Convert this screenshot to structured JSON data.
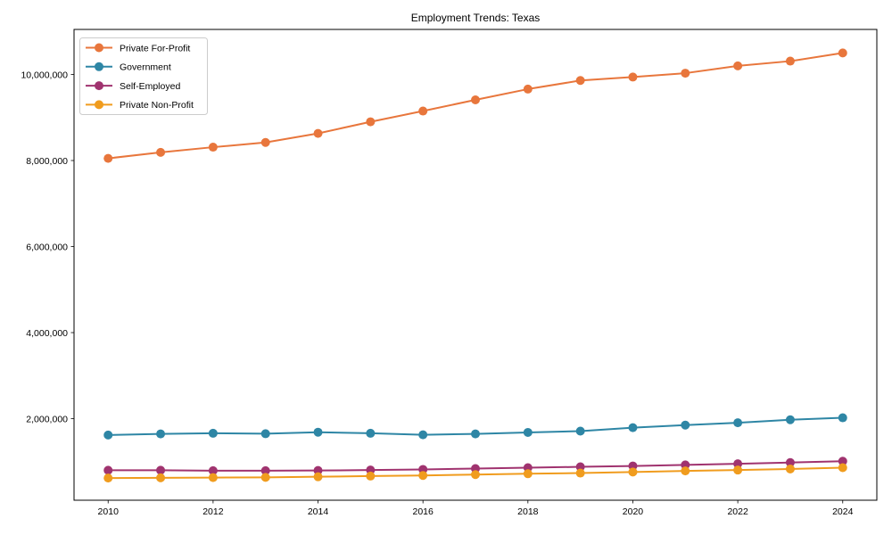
{
  "figure": {
    "background": "#ffffff"
  },
  "chart_data": {
    "type": "line",
    "title": "Employment Trends: Texas",
    "xlabel": "",
    "ylabel": "",
    "grid": false,
    "legend_position": "upper-left",
    "axis_color": "#000000",
    "text_color": "#000000",
    "plot_background": "#ffffff",
    "legend_border_color": "#cccccc",
    "x": [
      2010,
      2011,
      2012,
      2013,
      2014,
      2015,
      2016,
      2017,
      2018,
      2019,
      2020,
      2021,
      2022,
      2023,
      2024
    ],
    "series": [
      {
        "name": "Private For-Profit",
        "color": "#e8763c",
        "values": [
          8050000,
          8190000,
          8310000,
          8420000,
          8630000,
          8900000,
          9150000,
          9410000,
          9660000,
          9860000,
          9940000,
          10030000,
          10200000,
          10310000,
          10500000
        ]
      },
      {
        "name": "Government",
        "color": "#2e86a5",
        "values": [
          1620000,
          1645000,
          1660000,
          1650000,
          1685000,
          1660000,
          1625000,
          1645000,
          1680000,
          1710000,
          1790000,
          1850000,
          1905000,
          1975000,
          2020000
        ]
      },
      {
        "name": "Self-Employed",
        "color": "#a0336f",
        "values": [
          800000,
          800000,
          790000,
          790000,
          795000,
          805000,
          820000,
          840000,
          860000,
          880000,
          900000,
          925000,
          950000,
          980000,
          1010000
        ]
      },
      {
        "name": "Private Non-Profit",
        "color": "#f09c1e",
        "values": [
          620000,
          625000,
          630000,
          635000,
          650000,
          665000,
          680000,
          700000,
          720000,
          735000,
          760000,
          785000,
          805000,
          830000,
          860000
        ]
      }
    ],
    "xticks": [
      2010,
      2012,
      2014,
      2016,
      2018,
      2020,
      2022,
      2024
    ],
    "yticks": [
      2000000,
      4000000,
      6000000,
      8000000,
      10000000
    ],
    "ytick_labels": [
      "2,000,000",
      "4,000,000",
      "6,000,000",
      "8,000,000",
      "10,000,000"
    ],
    "xlim": [
      2009.35,
      2024.65
    ],
    "ylim": [
      104000,
      11047000
    ]
  }
}
